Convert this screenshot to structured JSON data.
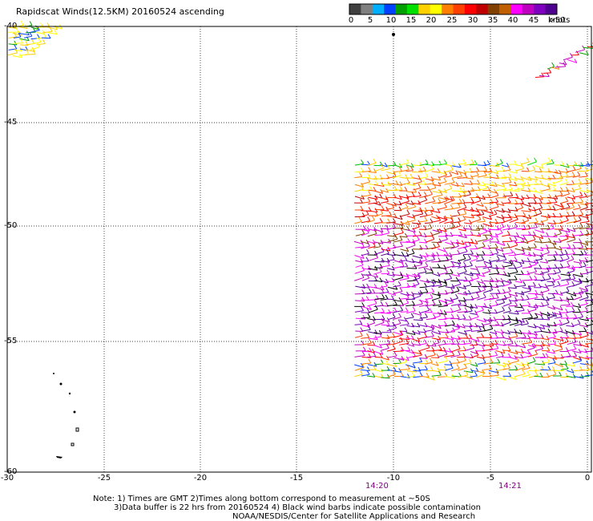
{
  "title": "Rapidscat Winds(12.5KM) 20160524 ascending",
  "colorbar": {
    "colors": [
      "#404040",
      "#808080",
      "#00b0ff",
      "#0040ff",
      "#00a000",
      "#00e000",
      "#ffd000",
      "#ffff00",
      "#ff8000",
      "#ff4000",
      "#ff0000",
      "#c00000",
      "#804000",
      "#c06000",
      "#ff00ff",
      "#c000c0",
      "#8000c0",
      "#500090"
    ],
    "labels": [
      "0",
      "5",
      "10",
      "15",
      "20",
      "25",
      "30",
      "35",
      "40",
      "45",
      ">50"
    ],
    "unit": "knots"
  },
  "y_ticks": [
    "-40",
    "-45",
    "-50",
    "-55",
    "-60"
  ],
  "x_ticks": [
    "-30",
    "-25",
    "-20",
    "-15",
    "-10",
    "-5",
    "0"
  ],
  "time_labels": [
    "14:20",
    "14:21"
  ],
  "notes": [
    "Note: 1) Times are GMT 2)Times along bottom correspond to measurement at ~50S",
    "3)Data buffer is 22 hrs from 20160524 4) Black wind barbs indicate possible contamination",
    "NOAA/NESDIS/Center for Satellite Applications and Research"
  ]
}
